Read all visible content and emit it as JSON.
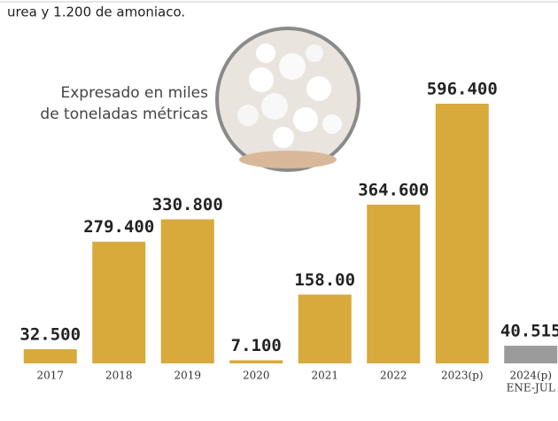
{
  "chart_data": {
    "type": "bar",
    "subtitle": "urea y 1.200 de amoniaco.",
    "annotation": [
      "Expresado en miles",
      "de toneladas métricas"
    ],
    "categories": [
      "2017",
      "2018",
      "2019",
      "2020",
      "2021",
      "2022",
      "2023(p)",
      "2024(p)"
    ],
    "period_note": "ENE-JUL",
    "values": [
      32.5,
      279.4,
      330.8,
      7.1,
      158,
      364.6,
      596.4,
      40.515
    ],
    "value_labels": [
      "32.500",
      "279.400",
      "330.800",
      "7.100",
      "158.00",
      "364.600",
      "596.400",
      "40.515"
    ],
    "colors": [
      "#d8a93b",
      "#d8a93b",
      "#d8a93b",
      "#d8a93b",
      "#d8a93b",
      "#d8a93b",
      "#d8a93b",
      "#9b9b9b"
    ]
  }
}
